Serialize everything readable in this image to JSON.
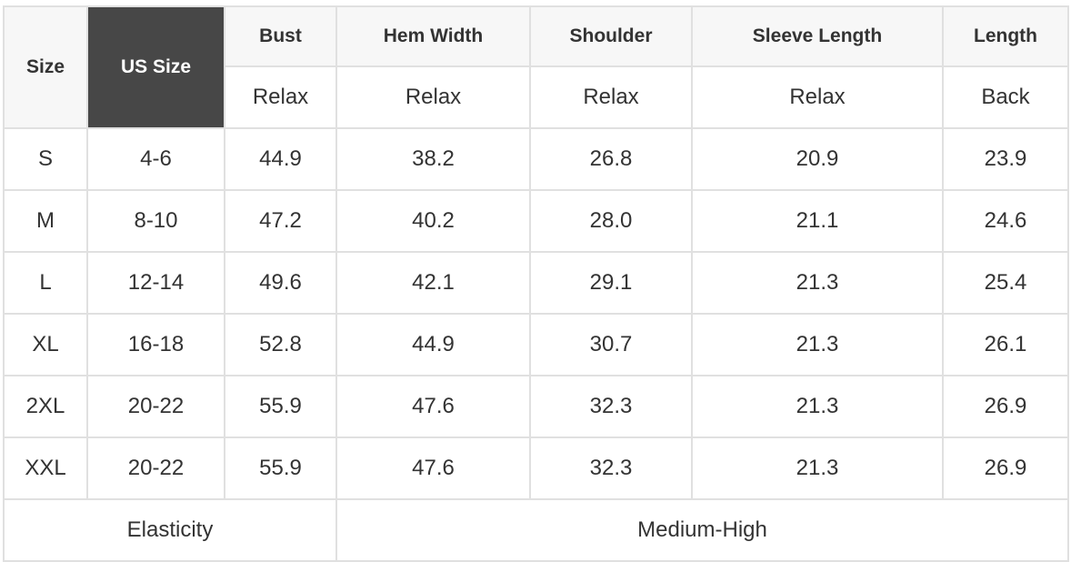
{
  "header": {
    "size": "Size",
    "us_size": "US Size",
    "columns": [
      {
        "label": "Bust",
        "sub": "Relax"
      },
      {
        "label": "Hem Width",
        "sub": "Relax"
      },
      {
        "label": "Shoulder",
        "sub": "Relax"
      },
      {
        "label": "Sleeve Length",
        "sub": "Relax"
      },
      {
        "label": "Length",
        "sub": "Back"
      }
    ]
  },
  "rows": [
    [
      "S",
      "4-6",
      "44.9",
      "38.2",
      "26.8",
      "20.9",
      "23.9"
    ],
    [
      "M",
      "8-10",
      "47.2",
      "40.2",
      "28.0",
      "21.1",
      "24.6"
    ],
    [
      "L",
      "12-14",
      "49.6",
      "42.1",
      "29.1",
      "21.3",
      "25.4"
    ],
    [
      "XL",
      "16-18",
      "52.8",
      "44.9",
      "30.7",
      "21.3",
      "26.1"
    ],
    [
      "2XL",
      "20-22",
      "55.9",
      "47.6",
      "32.3",
      "21.3",
      "26.9"
    ],
    [
      "XXL",
      "20-22",
      "55.9",
      "47.6",
      "32.3",
      "21.3",
      "26.9"
    ]
  ],
  "footer": {
    "label": "Elasticity",
    "value": "Medium-High"
  },
  "colors": {
    "us_size_header_bg": "#474747",
    "header_bg": "#f7f7f7",
    "border": "#e0e0e0"
  }
}
